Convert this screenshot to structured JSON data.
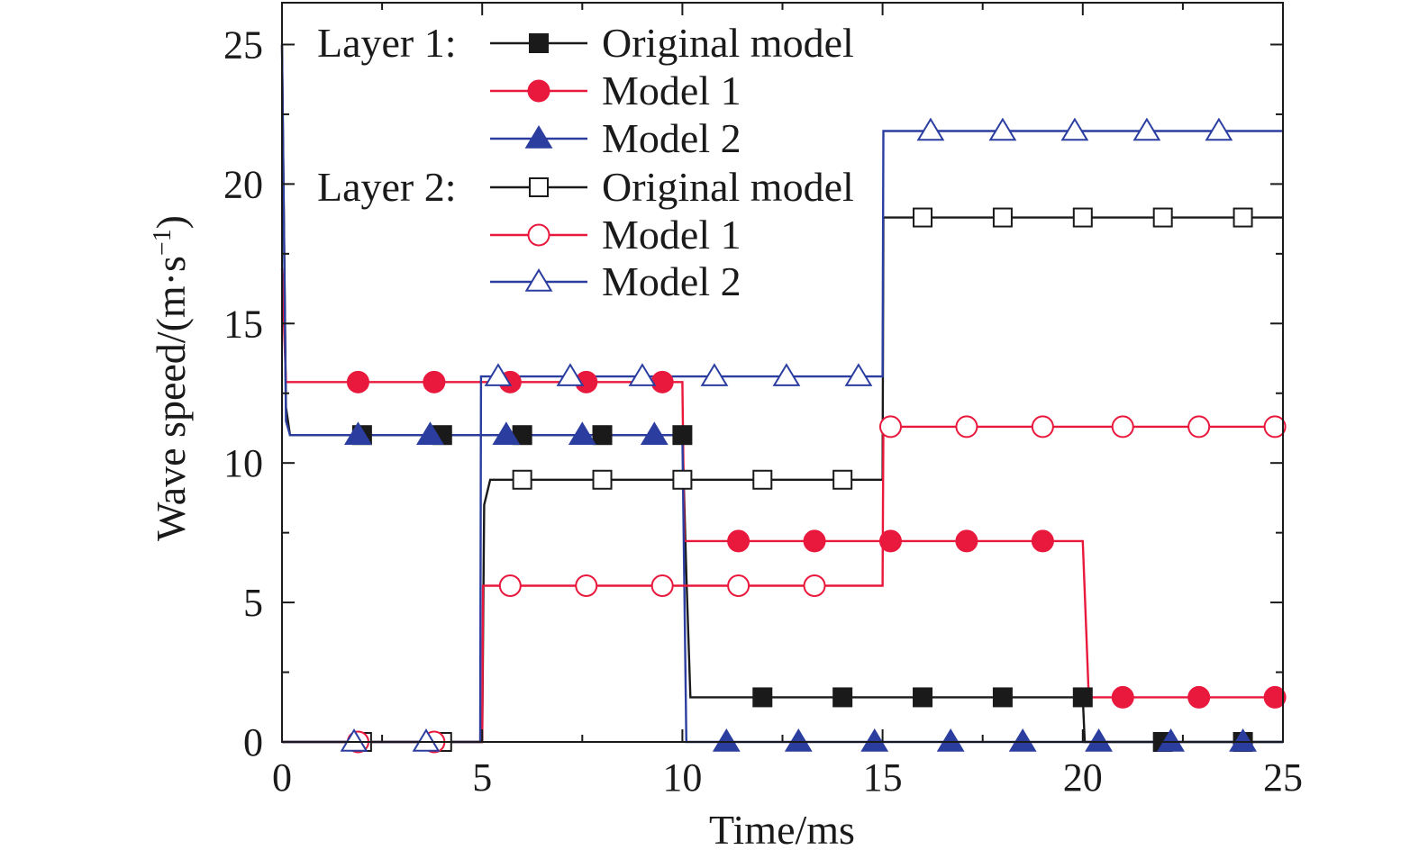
{
  "chart_data": {
    "type": "line",
    "xlabel": "Time/ms",
    "ylabel": "Wave speed/(m·s",
    "ylabel_sup": "−1",
    "ylabel_close": ")",
    "xlim": [
      0,
      25
    ],
    "ylim": [
      0,
      26.5
    ],
    "xticks": [
      0,
      5,
      10,
      15,
      20,
      25
    ],
    "yticks": [
      0,
      5,
      10,
      15,
      20,
      25
    ],
    "xtick_labels": [
      "0",
      "5",
      "10",
      "15",
      "20",
      "25"
    ],
    "ytick_labels": [
      "0",
      "5",
      "10",
      "15",
      "20",
      "25"
    ],
    "grid": false,
    "legend_position": "top-left",
    "legend_groups": [
      {
        "label": "Layer 1:",
        "series_names": [
          "Original model",
          "Model 1",
          "Model 2"
        ]
      },
      {
        "label": "Layer 2:",
        "series_names": [
          "Original model",
          "Model 1",
          "Model 2"
        ]
      }
    ],
    "series": [
      {
        "name": "Original model",
        "layer": "Layer 1",
        "color": "#1a1a1a",
        "marker": "square",
        "filled": true,
        "x": [
          0,
          0.1,
          0.2,
          10.0,
          10.1,
          10.2,
          20.0,
          20.05,
          25.0
        ],
        "y": [
          25.0,
          12.0,
          11.0,
          11.0,
          6.0,
          1.6,
          1.6,
          0.0,
          0.0
        ],
        "marker_x": [
          2.0,
          4.0,
          6.0,
          8.0,
          10.0,
          12.0,
          14.0,
          16.0,
          18.0,
          20.0,
          22.0,
          24.0
        ],
        "marker_y": [
          11.0,
          11.0,
          11.0,
          11.0,
          11.0,
          1.6,
          1.6,
          1.6,
          1.6,
          1.6,
          0.0,
          0.0
        ]
      },
      {
        "name": "Model 1",
        "layer": "Layer 1",
        "color": "#e8193c",
        "marker": "circle",
        "filled": true,
        "x": [
          0,
          0.1,
          10.0,
          10.05,
          20.0,
          20.15,
          25.0
        ],
        "y": [
          17.0,
          12.9,
          12.9,
          7.2,
          7.2,
          1.6,
          1.6
        ],
        "marker_x": [
          1.9,
          3.8,
          5.7,
          7.6,
          9.5,
          11.4,
          13.3,
          15.2,
          17.1,
          19.0,
          21.0,
          22.9,
          24.8
        ],
        "marker_y": [
          12.9,
          12.9,
          12.9,
          12.9,
          12.9,
          7.2,
          7.2,
          7.2,
          7.2,
          7.2,
          1.6,
          1.6,
          1.6
        ]
      },
      {
        "name": "Model 2",
        "layer": "Layer 1",
        "color": "#2b3ea0",
        "marker": "triangle",
        "filled": true,
        "x": [
          0,
          0.1,
          0.2,
          10.0,
          10.1,
          25.0
        ],
        "y": [
          25.0,
          11.5,
          11.0,
          11.0,
          0.0,
          0.0
        ],
        "marker_x": [
          1.9,
          3.7,
          5.6,
          7.5,
          9.3,
          11.1,
          12.9,
          14.8,
          16.7,
          18.5,
          20.4,
          22.2,
          24.0
        ],
        "marker_y": [
          11.0,
          11.0,
          11.0,
          11.0,
          11.0,
          0.0,
          0.0,
          0.0,
          0.0,
          0.0,
          0.0,
          0.0,
          0.0
        ]
      },
      {
        "name": "Original model",
        "layer": "Layer 2",
        "color": "#1a1a1a",
        "marker": "square",
        "filled": false,
        "x": [
          0,
          5.0,
          5.05,
          5.2,
          15.0,
          15.02,
          25.0
        ],
        "y": [
          0.0,
          0.0,
          8.5,
          9.4,
          9.4,
          18.8,
          18.8
        ],
        "marker_x": [
          2.0,
          4.0,
          6.0,
          8.0,
          10.0,
          12.0,
          14.0,
          16.0,
          18.0,
          20.0,
          22.0,
          24.0
        ],
        "marker_y": [
          0.0,
          0.0,
          9.4,
          9.4,
          9.4,
          9.4,
          9.4,
          18.8,
          18.8,
          18.8,
          18.8,
          18.8
        ]
      },
      {
        "name": "Model 1",
        "layer": "Layer 2",
        "color": "#e8193c",
        "marker": "circle",
        "filled": false,
        "x": [
          0,
          5.0,
          5.02,
          15.0,
          15.02,
          25.0
        ],
        "y": [
          0.0,
          0.0,
          5.6,
          5.6,
          11.3,
          11.3
        ],
        "marker_x": [
          1.9,
          3.8,
          5.7,
          7.6,
          9.5,
          11.4,
          13.3,
          15.2,
          17.1,
          19.0,
          21.0,
          22.9,
          24.8
        ],
        "marker_y": [
          0.0,
          0.0,
          5.6,
          5.6,
          5.6,
          5.6,
          5.6,
          11.3,
          11.3,
          11.3,
          11.3,
          11.3,
          11.3
        ]
      },
      {
        "name": "Model 2",
        "layer": "Layer 2",
        "color": "#2b3ea0",
        "marker": "triangle",
        "filled": false,
        "x": [
          0,
          4.95,
          4.97,
          15.0,
          15.02,
          25.0
        ],
        "y": [
          0.0,
          0.0,
          13.1,
          13.1,
          21.9,
          21.9
        ],
        "marker_x": [
          1.8,
          3.6,
          5.4,
          7.2,
          9.0,
          10.8,
          12.6,
          14.4,
          16.2,
          18.0,
          19.8,
          21.6,
          23.4
        ],
        "marker_y": [
          0.0,
          0.0,
          13.1,
          13.1,
          13.1,
          13.1,
          13.1,
          13.1,
          21.9,
          21.9,
          21.9,
          21.9,
          21.9
        ]
      }
    ]
  }
}
